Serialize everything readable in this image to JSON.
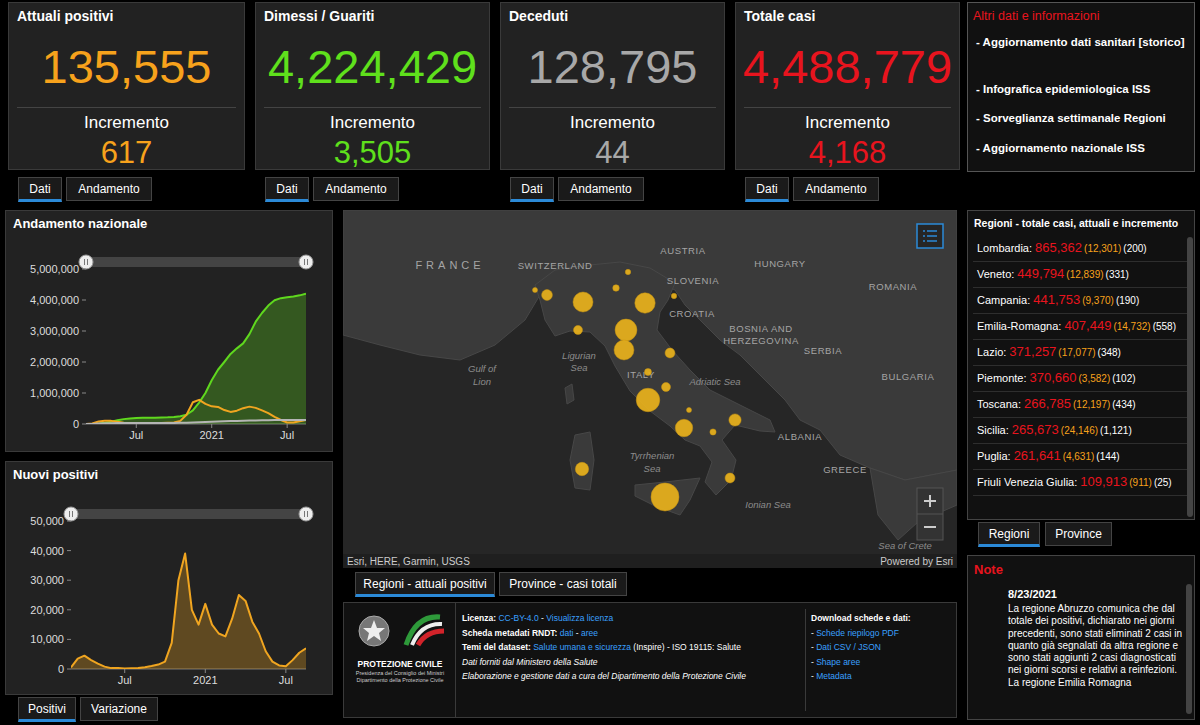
{
  "cards": [
    {
      "title": "Attuali positivi",
      "value": "135,555",
      "increment_label": "Incremento",
      "increment": "617",
      "color": "#f7a21c",
      "tabs": [
        "Dati",
        "Andamento"
      ]
    },
    {
      "title": "Dimessi / Guariti",
      "value": "4,224,429",
      "increment_label": "Incremento",
      "increment": "3,505",
      "color": "#5fe01c",
      "tabs": [
        "Dati",
        "Andamento"
      ]
    },
    {
      "title": "Deceduti",
      "value": "128,795",
      "increment_label": "Incremento",
      "increment": "44",
      "color": "#a8a8a8",
      "tabs": [
        "Dati",
        "Andamento"
      ]
    },
    {
      "title": "Totale casi",
      "value": "4,488,779",
      "increment_label": "Incremento",
      "increment": "4,168",
      "color": "#e8141e",
      "tabs": [
        "Dati",
        "Andamento"
      ]
    }
  ],
  "info_panel": {
    "title": "Altri dati e informazioni",
    "links": [
      "- Aggiornamento dati sanitari [storico]",
      "- Infografica epidemiologica ISS",
      "- Sorveglianza settimanale Regioni",
      "- Aggiornamento nazionale ISS"
    ]
  },
  "chart_data": [
    {
      "type": "line",
      "title": "Andamento nazionale",
      "categories": [
        null,
        null,
        null,
        null,
        null,
        null,
        null,
        null,
        "Jul",
        null,
        null,
        null,
        null,
        null,
        null,
        null,
        null,
        null,
        null,
        null,
        "2021",
        null,
        null,
        null,
        null,
        null,
        null,
        null,
        null,
        null,
        null,
        null,
        "Jul",
        null,
        null,
        null
      ],
      "series": [
        {
          "type": "area",
          "color": "#5fd81e",
          "values": [
            0,
            2000,
            15700,
            38000,
            75900,
            120000,
            157000,
            178000,
            191000,
            198000,
            201000,
            204000,
            208000,
            214000,
            225000,
            250000,
            300000,
            440000,
            690000,
            1000000,
            1410000,
            1750000,
            2000000,
            2260000,
            2440000,
            2600000,
            2900000,
            3300000,
            3580000,
            3820000,
            3990000,
            4060000,
            4090000,
            4110000,
            4150000,
            4200000
          ]
        },
        {
          "type": "line",
          "color": "#f0a520",
          "values": [
            1000,
            20000,
            78000,
            105000,
            101000,
            72000,
            42000,
            27000,
            16000,
            13000,
            12500,
            17000,
            29000,
            42000,
            50000,
            100000,
            300000,
            700000,
            780000,
            650000,
            570000,
            550000,
            450000,
            390000,
            430000,
            510000,
            560000,
            520000,
            440000,
            350000,
            230000,
            130000,
            50000,
            45000,
            90000,
            130000
          ]
        },
        {
          "type": "line",
          "color": "#b5b5b5",
          "values": [
            30,
            1800,
            13000,
            22000,
            28000,
            31500,
            33500,
            34400,
            34800,
            35000,
            35200,
            35400,
            35500,
            35700,
            35900,
            36400,
            38600,
            45200,
            55600,
            66500,
            74200,
            81300,
            88800,
            94000,
            98000,
            102500,
            109800,
            116400,
            121000,
            124300,
            126000,
            127000,
            127600,
            127900,
            128100,
            128500
          ]
        }
      ],
      "ylim": [
        0,
        5000000
      ],
      "yticks": [
        0,
        {
          "value": 1000000,
          "label": "1,000,000"
        },
        {
          "value": 2000000,
          "label": "2,000,000"
        },
        {
          "value": 3000000,
          "label": "3,000,000"
        },
        {
          "value": 4000000,
          "label": "4,000,000"
        },
        {
          "value": 5000000,
          "label": "5,000,000"
        }
      ],
      "grid": false
    },
    {
      "type": "area",
      "title": "Nuovi positivi",
      "categories": [
        null,
        null,
        null,
        null,
        null,
        null,
        null,
        null,
        "Jul",
        null,
        null,
        null,
        null,
        null,
        null,
        null,
        null,
        null,
        null,
        null,
        "2021",
        null,
        null,
        null,
        null,
        null,
        null,
        null,
        null,
        null,
        null,
        null,
        "Jul",
        null,
        null,
        null
      ],
      "values": [
        500,
        3500,
        4500,
        3000,
        1800,
        800,
        300,
        300,
        200,
        250,
        300,
        600,
        1000,
        1500,
        2500,
        8800,
        30000,
        39000,
        20000,
        15000,
        22000,
        15000,
        12000,
        11000,
        17000,
        25000,
        23000,
        16000,
        12000,
        6000,
        2500,
        1200,
        900,
        3000,
        5500,
        7000
      ],
      "color": "#f0a520",
      "ylim": [
        0,
        50000
      ],
      "yticks": [
        0,
        {
          "value": 10000,
          "label": "10,000"
        },
        {
          "value": 20000,
          "label": "20,000"
        },
        {
          "value": 30000,
          "label": "30,000"
        },
        {
          "value": 40000,
          "label": "40,000"
        },
        {
          "value": 50000,
          "label": "50,000"
        }
      ],
      "grid": false
    }
  ],
  "chart_tabs": [
    "Positivi",
    "Variazione"
  ],
  "map": {
    "labels": [
      {
        "text": "FRANCE",
        "kind": "country"
      },
      {
        "text": "SWITZERLAND",
        "kind": "country"
      },
      {
        "text": "AUSTRIA",
        "kind": "country"
      },
      {
        "text": "SLOVENIA",
        "kind": "country"
      },
      {
        "text": "HUNGARY",
        "kind": "country"
      },
      {
        "text": "ROMANIA",
        "kind": "country"
      },
      {
        "text": "CROATIA",
        "kind": "country"
      },
      {
        "text": "BOSNIA AND",
        "kind": "country"
      },
      {
        "text": "HERZEGOVINA",
        "kind": "country"
      },
      {
        "text": "SERBIA",
        "kind": "country"
      },
      {
        "text": "BULGARIA",
        "kind": "country"
      },
      {
        "text": "ITALY",
        "kind": "country"
      },
      {
        "text": "ALBANIA",
        "kind": "country"
      },
      {
        "text": "GREECE",
        "kind": "country"
      },
      {
        "text": "Ligurian",
        "kind": "sea"
      },
      {
        "text": "Sea",
        "kind": "sea"
      },
      {
        "text": "Gulf of",
        "kind": "sea"
      },
      {
        "text": "Lion",
        "kind": "sea"
      },
      {
        "text": "Adriatic Sea",
        "kind": "sea"
      },
      {
        "text": "Tyrrhenian",
        "kind": "sea"
      },
      {
        "text": "Sea",
        "kind": "sea"
      },
      {
        "text": "Ionian Sea",
        "kind": "sea"
      },
      {
        "text": "Sea of Crete",
        "kind": "sea"
      }
    ],
    "bubbles": [
      24146,
      17077,
      14732,
      12197,
      12839,
      12301,
      9370,
      5500,
      4631,
      3582,
      3000,
      2500,
      3000,
      1300,
      900,
      911,
      2500,
      1200,
      400,
      1500,
      200
    ],
    "attribution": "Esri, HERE, Garmin, USGS",
    "powered_by": "Powered by Esri",
    "tabs": [
      "Regioni - attuali positivi",
      "Province - casi totali"
    ]
  },
  "footer": {
    "logo": [
      "PROTEZIONE CIVILE",
      "Presidenza del Consiglio dei Ministri",
      "Dipartimento della Protezione Civile"
    ],
    "metadata": [
      [
        {
          "text": "Licenza: ",
          "kind": "label"
        },
        {
          "text": "CC-BY-4.0",
          "kind": "link"
        },
        {
          "text": " - ",
          "kind": "plain"
        },
        {
          "text": "Visualizza licenza",
          "kind": "link"
        }
      ],
      [
        {
          "text": "Scheda metadati RNDT: ",
          "kind": "label"
        },
        {
          "text": "dati",
          "kind": "link"
        },
        {
          "text": " - ",
          "kind": "plain"
        },
        {
          "text": "aree",
          "kind": "link"
        }
      ],
      [
        {
          "text": "Temi del dataset: ",
          "kind": "label"
        },
        {
          "text": "Salute umana e sicurezza",
          "kind": "link"
        },
        {
          "text": " (Inspire) - ISO 19115: Salute",
          "kind": "plain"
        }
      ],
      [
        {
          "text": "Dati forniti dal Ministero della Salute",
          "kind": "italic"
        }
      ],
      [
        {
          "text": "Elaborazione e gestione dati a cura del Dipartimento della Protezione Civile",
          "kind": "italic"
        }
      ]
    ],
    "downloads": [
      [
        {
          "text": "Download schede e dati:",
          "kind": "label"
        }
      ],
      [
        {
          "text": "- ",
          "kind": "plain"
        },
        {
          "text": "Schede riepilogo PDF",
          "kind": "link"
        }
      ],
      [
        {
          "text": "- ",
          "kind": "plain"
        },
        {
          "text": "Dati CSV / JSON",
          "kind": "link"
        }
      ],
      [
        {
          "text": "- ",
          "kind": "plain"
        },
        {
          "text": "Shape aree",
          "kind": "link"
        }
      ],
      [
        {
          "text": "- ",
          "kind": "plain"
        },
        {
          "text": "Metadata",
          "kind": "link"
        }
      ]
    ]
  },
  "regions_panel": {
    "title": "Regioni - totale casi, attuali e incremento",
    "rows": [
      {
        "name": "Lombardia:",
        "total": "865,362",
        "current": "(12,301)",
        "increment": "(200)"
      },
      {
        "name": "Veneto:",
        "total": "449,794",
        "current": "(12,839)",
        "increment": "(331)"
      },
      {
        "name": "Campania:",
        "total": "441,753",
        "current": "(9,370)",
        "increment": "(190)"
      },
      {
        "name": "Emilia-Romagna:",
        "total": "407,449",
        "current": "(14,732)",
        "increment": "(558)"
      },
      {
        "name": "Lazio:",
        "total": "371,257",
        "current": "(17,077)",
        "increment": "(348)"
      },
      {
        "name": "Piemonte:",
        "total": "370,660",
        "current": "(3,582)",
        "increment": "(102)"
      },
      {
        "name": "Toscana:",
        "total": "266,785",
        "current": "(12,197)",
        "increment": "(434)"
      },
      {
        "name": "Sicilia:",
        "total": "265,673",
        "current": "(24,146)",
        "increment": "(1,121)"
      },
      {
        "name": "Puglia:",
        "total": "261,641",
        "current": "(4,631)",
        "increment": "(144)"
      },
      {
        "name": "Friuli Venezia Giulia:",
        "total": "109,913",
        "current": "(911)",
        "increment": "(25)"
      }
    ],
    "tabs": [
      "Regioni",
      "Province"
    ]
  },
  "notes": {
    "title": "Note",
    "date": "8/23/2021",
    "text": "La regione Abruzzo comunica che dal totale dei positivi, dichiarato nei giorni precedenti, sono stati eliminati 2 casi in quanto già segnalati da altra regione e sono stati aggiunti 2 casi diagnosticati nei giorni scorsi e relativi a reinfezioni. La regione Emilia Romagna"
  }
}
